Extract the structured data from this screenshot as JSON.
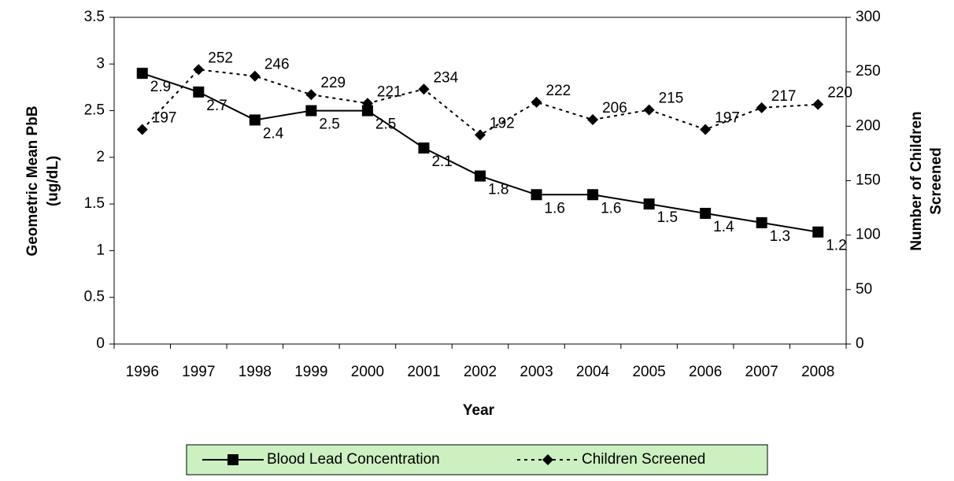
{
  "chart_data": {
    "type": "line",
    "xlabel": "Year",
    "ylabel": [
      "Geometric Mean PbB",
      "(ug/dL)"
    ],
    "y2label": [
      "Number of Children",
      "Screened"
    ],
    "categories": [
      "1996",
      "1997",
      "1998",
      "1999",
      "2000",
      "2001",
      "2002",
      "2003",
      "2004",
      "2005",
      "2006",
      "2007",
      "2008"
    ],
    "series": [
      {
        "name": "Blood Lead Concentration",
        "color": "#000000",
        "marker": "square",
        "dashed": false,
        "values": [
          2.9,
          2.7,
          2.4,
          2.5,
          2.5,
          2.1,
          1.8,
          1.6,
          1.6,
          1.5,
          1.4,
          1.3,
          1.2
        ]
      },
      {
        "name": "Children Screened",
        "color": "#000000",
        "marker": "diamond",
        "dashed": true,
        "axis": "y2",
        "values": [
          197,
          252,
          246,
          229,
          221,
          234,
          192,
          222,
          206,
          215,
          197,
          217,
          220
        ]
      }
    ],
    "ylim": [
      0,
      3.5
    ],
    "yticks": [
      0,
      0.5,
      1,
      1.5,
      2,
      2.5,
      3,
      3.5
    ],
    "y2lim": [
      0,
      300
    ],
    "y2ticks": [
      0,
      50,
      100,
      150,
      200,
      250,
      300
    ],
    "legend": "bottom",
    "legend_color": "#ccf0c0"
  }
}
